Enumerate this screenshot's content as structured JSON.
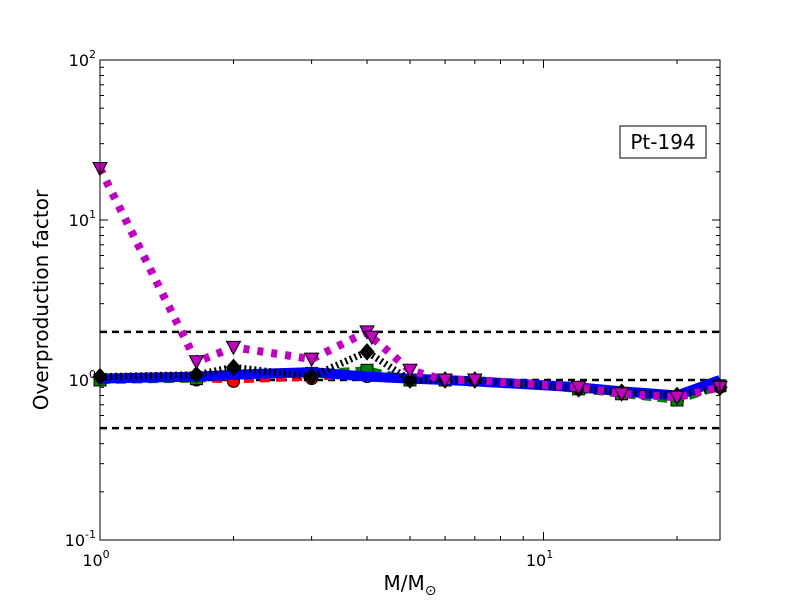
{
  "chart_data": {
    "type": "line",
    "xlabel": "M/M",
    "xlabel_sub": "⊙",
    "ylabel": "Overproduction factor",
    "xscale": "log",
    "yscale": "log",
    "xlim": [
      1,
      25
    ],
    "ylim": [
      0.1,
      100
    ],
    "x_ticks": [
      {
        "value": 1,
        "base": "10",
        "exp": "0"
      },
      {
        "value": 10,
        "base": "10",
        "exp": "1"
      }
    ],
    "y_ticks": [
      {
        "value": 0.1,
        "base": "10",
        "exp": "-1"
      },
      {
        "value": 1,
        "base": "10",
        "exp": "0"
      },
      {
        "value": 10,
        "base": "10",
        "exp": "1"
      },
      {
        "value": 100,
        "base": "10",
        "exp": "2"
      }
    ],
    "annotation": "Pt-194",
    "annotation_position": "top-right",
    "reference_lines": [
      2.0,
      1.0,
      0.5
    ],
    "reference_color": "#000000",
    "series": [
      {
        "color": "#ff0000",
        "marker": "circle",
        "dash": "10,6",
        "width": 4,
        "x": [
          1.0,
          1.65,
          2.0,
          3.0,
          4.0,
          5.0,
          6.0,
          7.0,
          12.0,
          15.0,
          20.0,
          25.0
        ],
        "y": [
          1.0,
          1.0,
          0.98,
          1.02,
          1.05,
          1.0,
          1.0,
          1.0,
          0.9,
          0.82,
          0.78,
          0.9
        ]
      },
      {
        "color": "#008000",
        "marker": "square",
        "dash": "10,6",
        "width": 8,
        "x": [
          1.0,
          1.65,
          2.0,
          3.0,
          4.0,
          5.0,
          6.0,
          7.0,
          12.0,
          15.0,
          20.0,
          25.0
        ],
        "y": [
          1.0,
          1.02,
          1.1,
          1.1,
          1.15,
          1.0,
          1.0,
          1.0,
          0.88,
          0.82,
          0.75,
          0.92
        ]
      },
      {
        "color": "#0000ff",
        "marker": "none",
        "dash": "none",
        "width": 10,
        "x": [
          1.0,
          1.65,
          2.0,
          3.0,
          4.0,
          5.0,
          6.0,
          7.0,
          12.0,
          15.0,
          20.0,
          25.0
        ],
        "y": [
          1.02,
          1.05,
          1.08,
          1.12,
          1.05,
          1.02,
          1.0,
          0.98,
          0.9,
          0.85,
          0.8,
          1.0
        ]
      },
      {
        "color": "#000000",
        "marker": "diamond",
        "dash": "2,3",
        "width": 7,
        "x": [
          1.0,
          1.65,
          2.0,
          3.0,
          4.0,
          5.0,
          6.0,
          7.0,
          12.0,
          15.0,
          20.0,
          25.0
        ],
        "y": [
          1.05,
          1.08,
          1.2,
          1.05,
          1.5,
          1.0,
          1.0,
          1.0,
          0.88,
          0.84,
          0.8,
          0.9
        ]
      },
      {
        "color": "#bf00bf",
        "marker": "triangle-down",
        "dash": "6,8",
        "width": 8,
        "x": [
          1.0,
          1.65,
          2.0,
          3.0,
          4.0,
          4.1,
          5.0,
          6.0,
          7.0,
          12.0,
          15.0,
          20.0,
          25.0
        ],
        "y": [
          21.0,
          1.3,
          1.6,
          1.35,
          2.0,
          1.85,
          1.15,
          1.0,
          1.0,
          0.9,
          0.82,
          0.78,
          0.9
        ]
      }
    ]
  }
}
